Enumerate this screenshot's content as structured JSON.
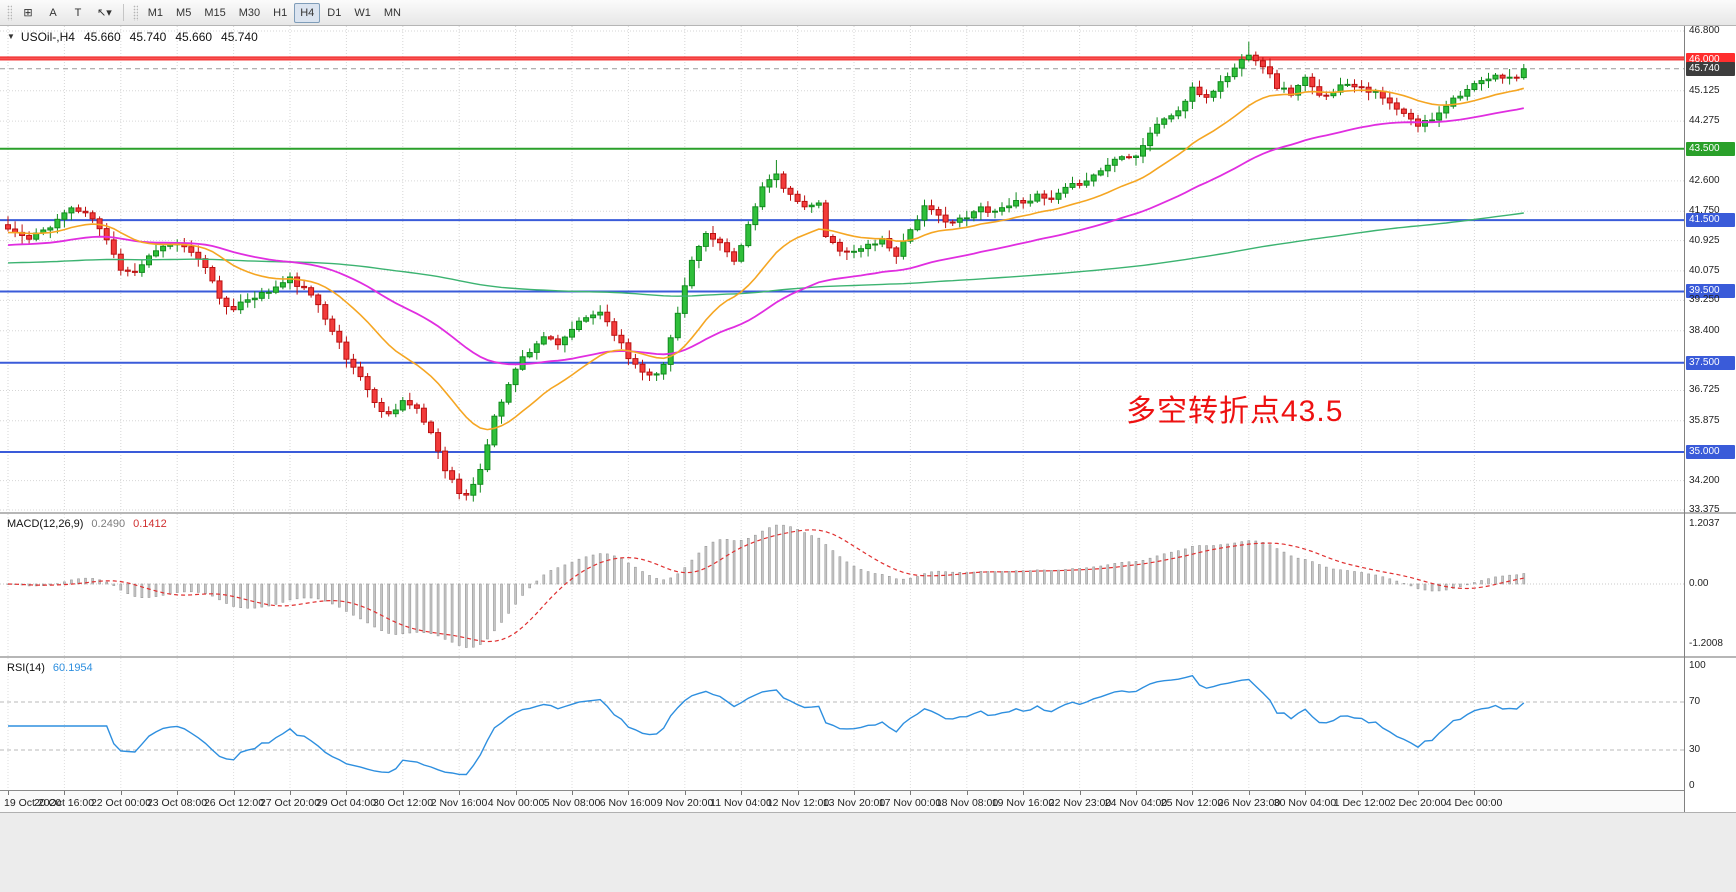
{
  "toolbar": {
    "tools": [
      {
        "name": "indicators-icon",
        "glyph": "⊞"
      },
      {
        "name": "text-label-icon",
        "glyph": "A"
      },
      {
        "name": "text-icon",
        "glyph": "T"
      },
      {
        "name": "arrows-dropdown-icon",
        "glyph": "↖▾"
      }
    ],
    "timeframes": [
      "M1",
      "M5",
      "M15",
      "M30",
      "H1",
      "H4",
      "D1",
      "W1",
      "MN"
    ],
    "active_timeframe": "H4"
  },
  "price_pane": {
    "collapse_icon": "▼",
    "title": {
      "symbol_period": "USOil-,H4",
      "open": "45.660",
      "high": "45.740",
      "low": "45.660",
      "close": "45.740"
    },
    "annotation": {
      "text": "多空转折点43.5",
      "color": "#ee1111"
    },
    "hlines": [
      {
        "price": 46.06,
        "color": "#f43b3b",
        "width": 2
      },
      {
        "price": 46.0,
        "color": "#f43b3b",
        "width": 2
      },
      {
        "price": 45.74,
        "color": "#9a9a9a",
        "width": 1,
        "dash": "5,4"
      },
      {
        "price": 43.5,
        "color": "#2aa02a",
        "width": 2
      },
      {
        "price": 41.5,
        "color": "#3a5bd9",
        "width": 2
      },
      {
        "price": 39.5,
        "color": "#3a5bd9",
        "width": 2
      },
      {
        "price": 37.5,
        "color": "#3a5bd9",
        "width": 2
      },
      {
        "price": 35.0,
        "color": "#3a5bd9",
        "width": 2
      }
    ]
  },
  "price_axis": {
    "labels": [
      {
        "text": "46.800",
        "price": 46.8,
        "style": "plain"
      },
      {
        "text": "46.000",
        "price": 46.0,
        "style": "red"
      },
      {
        "text": "45.740",
        "price": 45.74,
        "style": "dark"
      },
      {
        "text": "45.125",
        "price": 45.125,
        "style": "plain"
      },
      {
        "text": "44.275",
        "price": 44.275,
        "style": "plain"
      },
      {
        "text": "43.500",
        "price": 43.5,
        "style": "green"
      },
      {
        "text": "42.600",
        "price": 42.6,
        "style": "plain"
      },
      {
        "text": "41.750",
        "price": 41.75,
        "style": "plain"
      },
      {
        "text": "41.500",
        "price": 41.5,
        "style": "blue"
      },
      {
        "text": "40.925",
        "price": 40.925,
        "style": "plain"
      },
      {
        "text": "40.075",
        "price": 40.075,
        "style": "plain"
      },
      {
        "text": "39.500",
        "price": 39.5,
        "style": "blue"
      },
      {
        "text": "39.250",
        "price": 39.25,
        "style": "plain"
      },
      {
        "text": "38.400",
        "price": 38.4,
        "style": "plain"
      },
      {
        "text": "37.500",
        "price": 37.5,
        "style": "blue"
      },
      {
        "text": "36.725",
        "price": 36.725,
        "style": "plain"
      },
      {
        "text": "35.875",
        "price": 35.875,
        "style": "plain"
      },
      {
        "text": "35.000",
        "price": 35.0,
        "style": "blue"
      },
      {
        "text": "34.200",
        "price": 34.2,
        "style": "plain"
      },
      {
        "text": "33.375",
        "price": 33.375,
        "style": "plain"
      }
    ]
  },
  "macd_pane": {
    "label": "MACD(12,26,9)",
    "value_main": "0.2490",
    "value_signal": "0.1412",
    "axis": [
      {
        "text": "1.2037",
        "v": 1.2037
      },
      {
        "text": "0.00",
        "v": 0
      },
      {
        "text": "-1.2008",
        "v": -1.2008
      }
    ]
  },
  "rsi_pane": {
    "label": "RSI(14)",
    "value": "60.1954",
    "axis": [
      {
        "text": "100",
        "v": 100
      },
      {
        "text": "70",
        "v": 70
      },
      {
        "text": "30",
        "v": 30
      },
      {
        "text": "0",
        "v": 0
      }
    ]
  },
  "time_axis": {
    "labels": [
      "19 Oct 2020",
      "20 Oct 16:00",
      "22 Oct 00:00",
      "23 Oct 08:00",
      "26 Oct 12:00",
      "27 Oct 20:00",
      "29 Oct 04:00",
      "30 Oct 12:00",
      "2 Nov 16:00",
      "4 Nov 00:00",
      "5 Nov 08:00",
      "6 Nov 16:00",
      "9 Nov 20:00",
      "11 Nov 04:00",
      "12 Nov 12:00",
      "13 Nov 20:00",
      "17 Nov 00:00",
      "18 Nov 08:00",
      "19 Nov 16:00",
      "22 Nov 23:00",
      "24 Nov 04:00",
      "25 Nov 12:00",
      "26 Nov 23:00",
      "30 Nov 04:00",
      "1 Dec 12:00",
      "2 Dec 20:00",
      "4 Dec 00:00"
    ]
  },
  "chart_data": {
    "type": "candlestick",
    "symbol": "USOil-",
    "period": "H4",
    "bars": 216,
    "seed": 11,
    "tick_every": 8,
    "price_range": [
      33.375,
      46.8
    ],
    "last_close": 45.74,
    "close_waypoints": [
      [
        0,
        41.25
      ],
      [
        3,
        40.95
      ],
      [
        6,
        41.35
      ],
      [
        9,
        41.85
      ],
      [
        12,
        41.55
      ],
      [
        15,
        40.6
      ],
      [
        16,
        40.15
      ],
      [
        18,
        40.05
      ],
      [
        21,
        40.7
      ],
      [
        24,
        40.85
      ],
      [
        26,
        40.55
      ],
      [
        28,
        40.2
      ],
      [
        30,
        39.35
      ],
      [
        32,
        38.95
      ],
      [
        34,
        39.3
      ],
      [
        37,
        39.5
      ],
      [
        40,
        39.85
      ],
      [
        42,
        39.55
      ],
      [
        44,
        39.15
      ],
      [
        46,
        38.45
      ],
      [
        48,
        37.6
      ],
      [
        50,
        37.15
      ],
      [
        52,
        36.35
      ],
      [
        54,
        36.05
      ],
      [
        56,
        36.45
      ],
      [
        58,
        36.15
      ],
      [
        60,
        35.55
      ],
      [
        62,
        34.55
      ],
      [
        64,
        33.85
      ],
      [
        65,
        33.75
      ],
      [
        67,
        34.5
      ],
      [
        69,
        35.95
      ],
      [
        71,
        36.95
      ],
      [
        73,
        37.65
      ],
      [
        76,
        38.25
      ],
      [
        78,
        37.95
      ],
      [
        80,
        38.45
      ],
      [
        82,
        38.75
      ],
      [
        84,
        38.95
      ],
      [
        86,
        38.35
      ],
      [
        88,
        37.65
      ],
      [
        90,
        37.3
      ],
      [
        92,
        37.15
      ],
      [
        93,
        37.45
      ],
      [
        95,
        38.95
      ],
      [
        97,
        40.35
      ],
      [
        99,
        41.05
      ],
      [
        101,
        40.85
      ],
      [
        103,
        40.35
      ],
      [
        105,
        41.35
      ],
      [
        107,
        42.35
      ],
      [
        109,
        42.85
      ],
      [
        110,
        42.45
      ],
      [
        112,
        41.95
      ],
      [
        114,
        41.85
      ],
      [
        115,
        42.0
      ],
      [
        116,
        41.0
      ],
      [
        118,
        40.7
      ],
      [
        120,
        40.6
      ],
      [
        122,
        40.8
      ],
      [
        124,
        40.95
      ],
      [
        126,
        40.55
      ],
      [
        128,
        41.25
      ],
      [
        130,
        41.85
      ],
      [
        132,
        41.6
      ],
      [
        134,
        41.45
      ],
      [
        136,
        41.55
      ],
      [
        138,
        41.85
      ],
      [
        140,
        41.75
      ],
      [
        142,
        41.95
      ],
      [
        144,
        42.05
      ],
      [
        146,
        42.15
      ],
      [
        148,
        42.05
      ],
      [
        150,
        42.35
      ],
      [
        152,
        42.55
      ],
      [
        154,
        42.75
      ],
      [
        156,
        43.05
      ],
      [
        158,
        43.35
      ],
      [
        160,
        43.3
      ],
      [
        162,
        43.95
      ],
      [
        164,
        44.35
      ],
      [
        166,
        44.55
      ],
      [
        168,
        45.15
      ],
      [
        170,
        44.95
      ],
      [
        172,
        45.35
      ],
      [
        174,
        45.75
      ],
      [
        176,
        46.2
      ],
      [
        178,
        45.85
      ],
      [
        180,
        45.25
      ],
      [
        182,
        45.05
      ],
      [
        184,
        45.45
      ],
      [
        186,
        44.95
      ],
      [
        188,
        45.15
      ],
      [
        190,
        45.35
      ],
      [
        192,
        45.25
      ],
      [
        194,
        45.05
      ],
      [
        196,
        44.75
      ],
      [
        198,
        44.45
      ],
      [
        200,
        44.15
      ],
      [
        202,
        44.35
      ],
      [
        204,
        44.75
      ],
      [
        206,
        45.05
      ],
      [
        208,
        45.25
      ],
      [
        210,
        45.45
      ],
      [
        212,
        45.55
      ],
      [
        214,
        45.45
      ],
      [
        215,
        45.74
      ]
    ],
    "wick_boosts": [
      [
        176,
        0.3
      ],
      [
        109,
        0.2
      ],
      [
        64,
        -0.12
      ]
    ],
    "bull_color": "#2fbf3a",
    "bull_border": "#128a1e",
    "bear_color": "#f23b3b",
    "bear_border": "#bb1111",
    "moving_averages": [
      {
        "name": "ma-slow-green",
        "period": 300,
        "init": 40.3,
        "color": "#3cb371",
        "width": 1.4
      },
      {
        "name": "ma-mid-magenta",
        "period": 55,
        "init": 40.8,
        "color": "#e02ee0",
        "width": 1.8
      },
      {
        "name": "ma-fast-orange",
        "period": 20,
        "init": 41.15,
        "color": "#f5a623",
        "width": 1.6
      }
    ],
    "macd": {
      "fast": 12,
      "slow": 26,
      "signal": 9,
      "hist_color": "#c6c6c6",
      "hist_border": "#9a9a9a",
      "signal_color": "#e03030"
    },
    "rsi": {
      "period": 14,
      "color": "#2e8fdf",
      "levels": [
        30,
        70
      ]
    }
  }
}
